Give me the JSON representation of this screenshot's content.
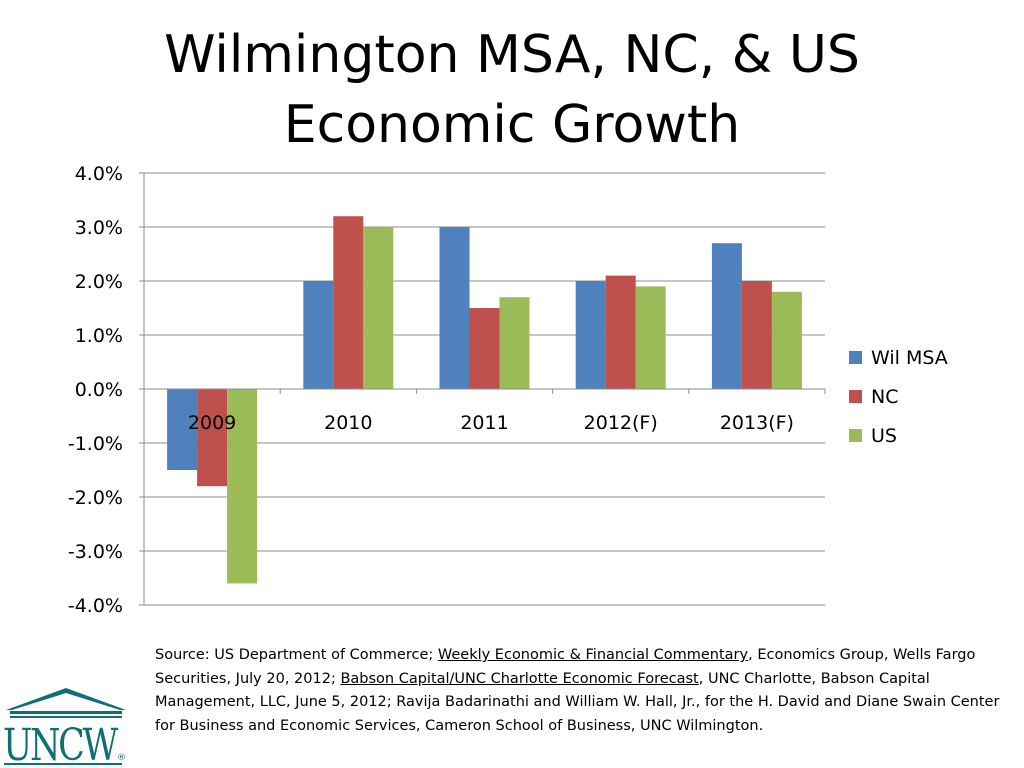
{
  "title": {
    "line1": "Wilmington MSA, NC, & US",
    "line2": "Economic Growth"
  },
  "chart_data": {
    "type": "bar",
    "categories": [
      "2009",
      "2010",
      "2011",
      "2012(F)",
      "2013(F)"
    ],
    "series": [
      {
        "name": "Wil MSA",
        "color": "#4F81BD",
        "values": [
          -1.5,
          2.0,
          3.0,
          2.0,
          2.7
        ]
      },
      {
        "name": "NC",
        "color": "#C0504D",
        "values": [
          -1.8,
          3.2,
          1.5,
          2.1,
          2.0
        ]
      },
      {
        "name": "US",
        "color": "#9BBB59",
        "values": [
          -3.6,
          3.0,
          1.7,
          1.9,
          1.8
        ]
      }
    ],
    "yticks": [
      "4.0%",
      "3.0%",
      "2.0%",
      "1.0%",
      "0.0%",
      "-1.0%",
      "-2.0%",
      "-3.0%",
      "-4.0%"
    ],
    "ylim": [
      -4.0,
      4.0
    ],
    "grid": true,
    "legend_position": "right"
  },
  "source": {
    "p1": "Source: US Department of Commerce; ",
    "link1": "Weekly Economic & Financial Commentary",
    "p2": ", Economics Group, Wells Fargo Securities, July 20, 2012; ",
    "link2": "Babson Capital/UNC Charlotte Economic Forecast",
    "p3": ", UNC Charlotte, Babson Capital Management, LLC, June 5, 2012; Ravija Badarinathi and William W. Hall, Jr., for the H. David and Diane Swain Center for Business and Economic Services, Cameron School of Business, UNC Wilmington."
  },
  "logo": {
    "text": "UNCW",
    "mark": "®",
    "color": "#0E6F74"
  }
}
